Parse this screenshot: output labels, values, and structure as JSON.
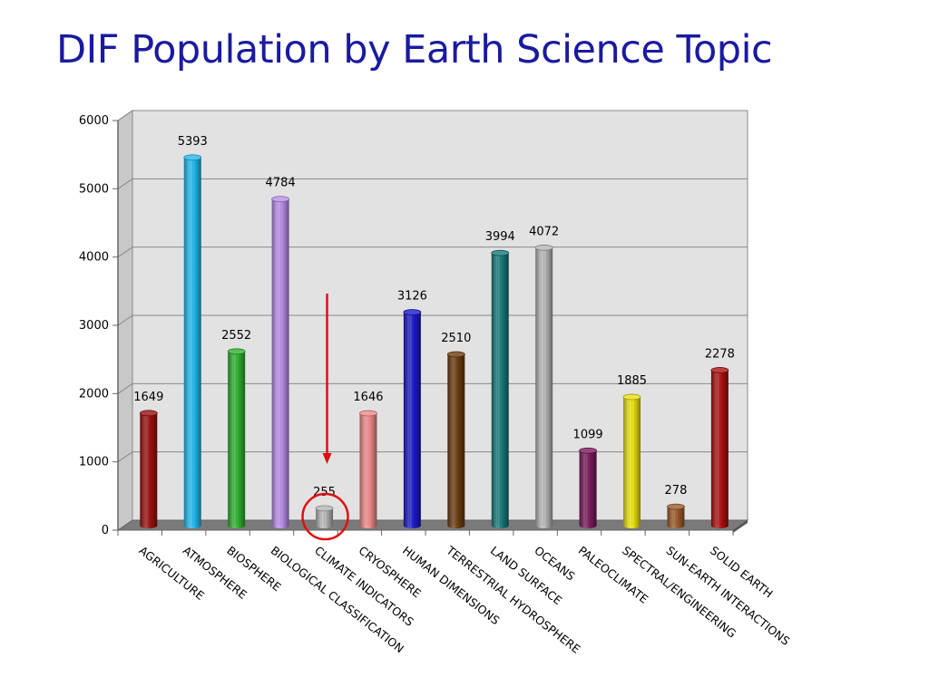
{
  "chart_data": {
    "type": "bar",
    "title": "DIF Population by Earth Science Topic",
    "xlabel": "",
    "ylabel": "",
    "ylim": [
      0,
      6000
    ],
    "yticks": [
      0,
      1000,
      2000,
      3000,
      4000,
      5000,
      6000
    ],
    "grid": true,
    "legend": "none",
    "categories": [
      "AGRICULTURE",
      "ATMOSPHERE",
      "BIOSPHERE",
      "BIOLOGICAL CLASSIFICATION",
      "CLIMATE INDICATORS",
      "CRYOSPHERE",
      "HUMAN DIMENSIONS",
      "TERRESTRIAL HYDROSPHERE",
      "LAND SURFACE",
      "OCEANS",
      "PALEOCLIMATE",
      "SPECTRAL/ENGINEERING",
      "SUN-EARTH INTERACTIONS",
      "SOLID EARTH"
    ],
    "values": [
      1649,
      5393,
      2552,
      4784,
      255,
      1646,
      3126,
      2510,
      3994,
      4072,
      1099,
      1885,
      278,
      2278
    ],
    "colors": [
      "#9b1010",
      "#22b8ee",
      "#2fb02f",
      "#b88ee8",
      "#b5b5b5",
      "#ee8a8a",
      "#1a1ac8",
      "#6a3c10",
      "#167a78",
      "#b5b5b5",
      "#7a1a5a",
      "#e8e010",
      "#9a5a2a",
      "#aa1010"
    ],
    "annotations": [
      {
        "type": "arrow",
        "color": "#e01010",
        "target": "CLIMATE INDICATORS"
      },
      {
        "type": "circle",
        "color": "#e01010",
        "target": "CLIMATE INDICATORS"
      }
    ]
  }
}
